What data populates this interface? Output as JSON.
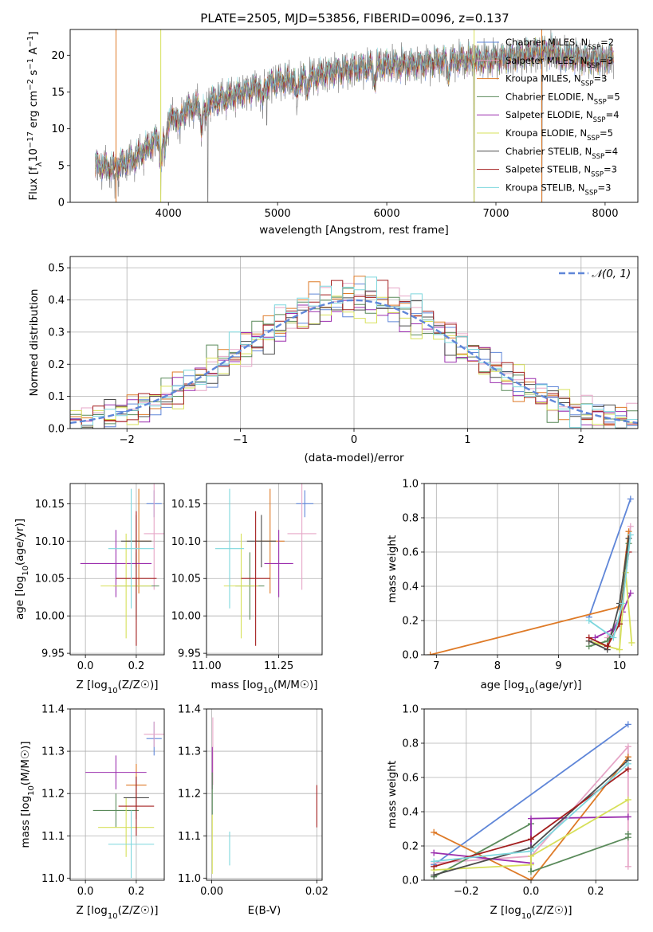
{
  "figure": {
    "title": "PLATE=2505, MJD=53856, FIBERID=0096, z=0.137"
  },
  "colors": {
    "chabrier_miles": "#5f86d8",
    "salpeter_miles": "#e6a6c7",
    "kroupa_miles": "#de7a27",
    "chabrier_elodie": "#5a8a5a",
    "salpeter_elodie": "#9b2fae",
    "kroupa_elodie": "#d7e05a",
    "chabrier_stelib": "#4c4c4c",
    "salpeter_stelib": "#a31e1e",
    "kroupa_stelib": "#7ed7dd",
    "spectrum_gray": "#808080",
    "normal_curve": "#5f86d8"
  },
  "legend": {
    "entries": [
      {
        "label": "Chabrier MILES, N",
        "sub": "SSP",
        "tail": "=2",
        "color_key": "chabrier_miles"
      },
      {
        "label": "Salpeter MILES, N",
        "sub": "SSP",
        "tail": "=3",
        "color_key": "salpeter_miles"
      },
      {
        "label": "Kroupa MILES, N",
        "sub": "SSP",
        "tail": "=3",
        "color_key": "kroupa_miles"
      },
      {
        "label": "Chabrier ELODIE, N",
        "sub": "SSP",
        "tail": "=5",
        "color_key": "chabrier_elodie"
      },
      {
        "label": "Salpeter ELODIE, N",
        "sub": "SSP",
        "tail": "=4",
        "color_key": "salpeter_elodie"
      },
      {
        "label": "Kroupa ELODIE, N",
        "sub": "SSP",
        "tail": "=5",
        "color_key": "kroupa_elodie"
      },
      {
        "label": "Chabrier STELIB, N",
        "sub": "SSP",
        "tail": "=4",
        "color_key": "chabrier_stelib"
      },
      {
        "label": "Salpeter STELIB, N",
        "sub": "SSP",
        "tail": "=3",
        "color_key": "salpeter_stelib"
      },
      {
        "label": "Kroupa STELIB, N",
        "sub": "SSP",
        "tail": "=3",
        "color_key": "kroupa_stelib"
      }
    ],
    "normal_label": "𝒩(0, 1)"
  },
  "chart_data": [
    {
      "id": "spectrum",
      "type": "line",
      "xlabel": "wavelength [Angstrom, rest frame]",
      "ylabel": "Flux [f_λ 10^-17 erg cm^-2 s^-1 A^-1]",
      "xlim": [
        3100,
        8300
      ],
      "ylim": [
        0,
        23.5
      ],
      "xticks": [
        4000,
        5000,
        6000,
        7000,
        8000
      ],
      "yticks": [
        0,
        5,
        10,
        15,
        20
      ],
      "grid": false,
      "legend_position": "top-right",
      "continuum_knots": [
        [
          3330,
          4.8
        ],
        [
          3500,
          4.3
        ],
        [
          3700,
          5.8
        ],
        [
          3900,
          8.5
        ],
        [
          4000,
          11.0
        ],
        [
          4200,
          12.6
        ],
        [
          4500,
          14.0
        ],
        [
          4800,
          15.5
        ],
        [
          5000,
          16.3
        ],
        [
          5200,
          16.5
        ],
        [
          5500,
          17.8
        ],
        [
          5800,
          18.2
        ],
        [
          6000,
          18.6
        ],
        [
          6300,
          18.8
        ],
        [
          6600,
          19.2
        ],
        [
          6900,
          19.4
        ],
        [
          7200,
          19.8
        ],
        [
          7500,
          20.5
        ],
        [
          7800,
          19.5
        ],
        [
          8000,
          19.3
        ],
        [
          8080,
          19.5
        ]
      ],
      "absorption_features": [
        [
          3934,
          4.5
        ],
        [
          3968,
          3.5
        ],
        [
          4102,
          2.0
        ],
        [
          4304,
          3.0
        ],
        [
          4340,
          2.0
        ],
        [
          4861,
          2.5
        ],
        [
          5175,
          2.5
        ],
        [
          5270,
          1.5
        ],
        [
          5890,
          2.0
        ],
        [
          6563,
          2.0
        ],
        [
          7600,
          1.5
        ]
      ],
      "deep_dips": [
        [
          3510,
          0.5
        ],
        [
          3540,
          0.8
        ],
        [
          3930,
          0.3
        ],
        [
          4360,
          0.0
        ],
        [
          4900,
          10.5
        ],
        [
          5180,
          13.0
        ],
        [
          5890,
          15.5
        ],
        [
          6800,
          0.0
        ],
        [
          7420,
          0.0
        ]
      ]
    },
    {
      "id": "residual_histogram",
      "type": "histogram",
      "xlabel": "(data-model)/error",
      "ylabel": "Normed distribution",
      "xlim": [
        -2.5,
        2.5
      ],
      "ylim": [
        0,
        0.535
      ],
      "xticks": [
        -2,
        -1,
        0,
        1,
        2
      ],
      "yticks": [
        0.0,
        0.1,
        0.2,
        0.3,
        0.4,
        0.5
      ],
      "grid": true,
      "bin_width": 0.1,
      "normal_curve": {
        "mean": 0,
        "sigma": 1
      }
    },
    {
      "id": "age_vs_Z",
      "type": "scatter",
      "xlabel": "Z [log10(Z/Z☉)]",
      "ylabel": "age [log10(age/yr)]",
      "xlim": [
        -0.06,
        0.31
      ],
      "ylim": [
        9.948,
        10.177
      ],
      "xticks": [
        0.0,
        0.2
      ],
      "yticks": [
        9.95,
        10.0,
        10.05,
        10.1,
        10.15
      ],
      "grid": true,
      "points": [
        {
          "model": "chabrier_miles",
          "x": 0.27,
          "y": 10.15,
          "dx": 0.03,
          "dy": 0.018
        },
        {
          "model": "salpeter_miles",
          "x": 0.27,
          "y": 10.11,
          "dx": 0.04,
          "dy": 0.075
        },
        {
          "model": "kroupa_miles",
          "x": 0.21,
          "y": 10.1,
          "dx": 0.05,
          "dy": 0.07
        },
        {
          "model": "chabrier_elodie",
          "x": 0.2,
          "y": 10.04,
          "dx": 0.09,
          "dy": 0.045
        },
        {
          "model": "salpeter_elodie",
          "x": 0.12,
          "y": 10.07,
          "dx": 0.14,
          "dy": 0.045
        },
        {
          "model": "kroupa_elodie",
          "x": 0.16,
          "y": 10.04,
          "dx": 0.1,
          "dy": 0.07
        },
        {
          "model": "chabrier_stelib",
          "x": 0.2,
          "y": 10.1,
          "dx": 0.06,
          "dy": 0.035
        },
        {
          "model": "salpeter_stelib",
          "x": 0.2,
          "y": 10.05,
          "dx": 0.08,
          "dy": 0.09
        },
        {
          "model": "kroupa_stelib",
          "x": 0.18,
          "y": 10.09,
          "dx": 0.09,
          "dy": 0.08
        }
      ]
    },
    {
      "id": "age_vs_mass",
      "type": "scatter",
      "xlabel": "mass [log10(M/M☉)]",
      "ylabel": "",
      "xlim": [
        11.0,
        11.4
      ],
      "ylim": [
        9.948,
        10.177
      ],
      "xticks": [
        11.0,
        11.25
      ],
      "yticks": [
        9.95,
        10.0,
        10.05,
        10.1,
        10.15
      ],
      "grid": true,
      "points": [
        {
          "model": "chabrier_miles",
          "x": 11.34,
          "y": 10.15,
          "dx": 0.03,
          "dy": 0.018
        },
        {
          "model": "salpeter_miles",
          "x": 11.33,
          "y": 10.11,
          "dx": 0.05,
          "dy": 0.075
        },
        {
          "model": "kroupa_miles",
          "x": 11.22,
          "y": 10.1,
          "dx": 0.05,
          "dy": 0.07
        },
        {
          "model": "chabrier_elodie",
          "x": 11.15,
          "y": 10.04,
          "dx": 0.05,
          "dy": 0.045
        },
        {
          "model": "salpeter_elodie",
          "x": 11.25,
          "y": 10.07,
          "dx": 0.05,
          "dy": 0.045
        },
        {
          "model": "kroupa_elodie",
          "x": 11.12,
          "y": 10.04,
          "dx": 0.06,
          "dy": 0.07
        },
        {
          "model": "chabrier_stelib",
          "x": 11.19,
          "y": 10.1,
          "dx": 0.05,
          "dy": 0.035
        },
        {
          "model": "salpeter_stelib",
          "x": 11.17,
          "y": 10.05,
          "dx": 0.05,
          "dy": 0.09
        },
        {
          "model": "kroupa_stelib",
          "x": 11.08,
          "y": 10.09,
          "dx": 0.05,
          "dy": 0.08
        }
      ]
    },
    {
      "id": "mass_weight_vs_age",
      "type": "line",
      "xlabel": "age [log10(age/yr)]",
      "ylabel": "mass weight",
      "xlim": [
        6.8,
        10.3
      ],
      "ylim": [
        0.0,
        1.0
      ],
      "xticks": [
        7,
        8,
        9,
        10
      ],
      "yticks": [
        0.0,
        0.2,
        0.4,
        0.6,
        0.8,
        1.0
      ],
      "grid": true,
      "series": [
        {
          "model": "chabrier_miles",
          "points": [
            [
              9.5,
              0.22
            ],
            [
              10.18,
              0.91
            ]
          ]
        },
        {
          "model": "salpeter_miles",
          "points": [
            [
              9.8,
              0.1
            ],
            [
              10.0,
              0.2
            ],
            [
              10.18,
              0.75
            ]
          ]
        },
        {
          "model": "kroupa_miles",
          "points": [
            [
              6.9,
              0.0
            ],
            [
              10.0,
              0.28
            ],
            [
              10.15,
              0.72
            ]
          ]
        },
        {
          "model": "chabrier_elodie",
          "points": [
            [
              9.5,
              0.05
            ],
            [
              9.8,
              0.08
            ],
            [
              10.0,
              0.2
            ],
            [
              10.15,
              0.65
            ]
          ]
        },
        {
          "model": "salpeter_elodie",
          "points": [
            [
              9.6,
              0.1
            ],
            [
              9.9,
              0.15
            ],
            [
              10.05,
              0.25
            ],
            [
              10.18,
              0.36
            ]
          ]
        },
        {
          "model": "kroupa_elodie",
          "points": [
            [
              9.5,
              0.08
            ],
            [
              9.8,
              0.05
            ],
            [
              10.0,
              0.03
            ],
            [
              10.1,
              0.48
            ],
            [
              10.2,
              0.07
            ]
          ]
        },
        {
          "model": "chabrier_stelib",
          "points": [
            [
              9.5,
              0.08
            ],
            [
              9.8,
              0.03
            ],
            [
              10.0,
              0.3
            ],
            [
              10.15,
              0.68
            ]
          ]
        },
        {
          "model": "salpeter_stelib",
          "points": [
            [
              9.5,
              0.1
            ],
            [
              9.8,
              0.05
            ],
            [
              10.0,
              0.18
            ],
            [
              10.15,
              0.6
            ]
          ]
        },
        {
          "model": "kroupa_stelib",
          "points": [
            [
              9.5,
              0.2
            ],
            [
              9.9,
              0.1
            ],
            [
              10.05,
              0.3
            ],
            [
              10.18,
              0.7
            ]
          ]
        }
      ]
    },
    {
      "id": "mass_vs_Z",
      "type": "scatter",
      "xlabel": "Z [log10(Z/Z☉)]",
      "ylabel": "mass [log10(M/M☉)]",
      "xlim": [
        -0.06,
        0.31
      ],
      "ylim": [
        10.995,
        11.4
      ],
      "xticks": [
        0.0,
        0.2
      ],
      "yticks": [
        11.0,
        11.1,
        11.2,
        11.3,
        11.4
      ],
      "grid": true,
      "points": [
        {
          "model": "chabrier_miles",
          "x": 0.27,
          "y": 11.33,
          "dx": 0.03,
          "dy": 0.04
        },
        {
          "model": "salpeter_miles",
          "x": 0.27,
          "y": 11.34,
          "dx": 0.04,
          "dy": 0.03
        },
        {
          "model": "kroupa_miles",
          "x": 0.2,
          "y": 11.22,
          "dx": 0.04,
          "dy": 0.05
        },
        {
          "model": "chabrier_elodie",
          "x": 0.12,
          "y": 11.16,
          "dx": 0.09,
          "dy": 0.04
        },
        {
          "model": "salpeter_elodie",
          "x": 0.12,
          "y": 11.25,
          "dx": 0.12,
          "dy": 0.04
        },
        {
          "model": "kroupa_elodie",
          "x": 0.16,
          "y": 11.12,
          "dx": 0.11,
          "dy": 0.07
        },
        {
          "model": "chabrier_stelib",
          "x": 0.2,
          "y": 11.19,
          "dx": 0.05,
          "dy": 0.05
        },
        {
          "model": "salpeter_stelib",
          "x": 0.2,
          "y": 11.17,
          "dx": 0.07,
          "dy": 0.07
        },
        {
          "model": "kroupa_stelib",
          "x": 0.18,
          "y": 11.08,
          "dx": 0.09,
          "dy": 0.08
        }
      ]
    },
    {
      "id": "mass_vs_ebv",
      "type": "scatter",
      "xlabel": "E(B-V)",
      "ylabel": "",
      "xlim": [
        -0.001,
        0.021
      ],
      "ylim": [
        10.995,
        11.4
      ],
      "xticks": [
        0.0,
        0.02
      ],
      "yticks": [
        11.0,
        11.1,
        11.2,
        11.3,
        11.4
      ],
      "grid": true,
      "points": [
        {
          "model": "salpeter_miles",
          "x": 0.0002,
          "y": 11.3,
          "dx": 0,
          "dy": 0.08
        },
        {
          "model": "salpeter_elodie",
          "x": 0.0001,
          "y": 11.26,
          "dx": 0,
          "dy": 0.05
        },
        {
          "model": "chabrier_elodie",
          "x": 0.0001,
          "y": 11.2,
          "dx": 0,
          "dy": 0.05
        },
        {
          "model": "kroupa_elodie",
          "x": 0.0001,
          "y": 11.08,
          "dx": 0,
          "dy": 0.07
        },
        {
          "model": "kroupa_stelib",
          "x": 0.0034,
          "y": 11.07,
          "dx": 0,
          "dy": 0.04
        },
        {
          "model": "salpeter_stelib",
          "x": 0.02,
          "y": 11.17,
          "dx": 0,
          "dy": 0.05
        }
      ]
    },
    {
      "id": "mass_weight_vs_Z",
      "type": "line",
      "xlabel": "Z [log10(Z/Z☉)]",
      "ylabel": "mass weight",
      "xlim": [
        -0.33,
        0.33
      ],
      "ylim": [
        0.0,
        1.0
      ],
      "xticks": [
        -0.2,
        0.0,
        0.2
      ],
      "yticks": [
        0.0,
        0.2,
        0.4,
        0.6,
        0.8,
        1.0
      ],
      "grid": true,
      "series": [
        {
          "model": "chabrier_miles",
          "points": [
            [
              -0.3,
              0.09
            ],
            [
              0.3,
              0.91
            ]
          ]
        },
        {
          "model": "salpeter_miles",
          "points": [
            [
              -0.3,
              0.1
            ],
            [
              0.0,
              0.14
            ],
            [
              0.3,
              0.78
            ],
            [
              0.3,
              0.08
            ]
          ]
        },
        {
          "model": "kroupa_miles",
          "points": [
            [
              -0.3,
              0.28
            ],
            [
              0.0,
              0.0
            ],
            [
              0.3,
              0.72
            ]
          ]
        },
        {
          "model": "chabrier_elodie",
          "points": [
            [
              -0.3,
              0.02
            ],
            [
              0.0,
              0.33
            ],
            [
              0.0,
              0.05
            ],
            [
              0.3,
              0.25
            ],
            [
              0.3,
              0.27
            ]
          ]
        },
        {
          "model": "salpeter_elodie",
          "points": [
            [
              -0.3,
              0.16
            ],
            [
              0.0,
              0.1
            ],
            [
              0.0,
              0.36
            ],
            [
              0.3,
              0.37
            ]
          ]
        },
        {
          "model": "kroupa_elodie",
          "points": [
            [
              -0.3,
              0.06
            ],
            [
              0.0,
              0.09
            ],
            [
              0.0,
              0.14
            ],
            [
              0.3,
              0.47
            ]
          ]
        },
        {
          "model": "chabrier_stelib",
          "points": [
            [
              -0.3,
              0.03
            ],
            [
              0.0,
              0.19
            ],
            [
              0.3,
              0.7
            ]
          ]
        },
        {
          "model": "salpeter_stelib",
          "points": [
            [
              -0.3,
              0.08
            ],
            [
              0.0,
              0.24
            ],
            [
              0.3,
              0.65
            ]
          ]
        },
        {
          "model": "kroupa_stelib",
          "points": [
            [
              -0.3,
              0.11
            ],
            [
              0.0,
              0.17
            ],
            [
              0.3,
              0.68
            ]
          ]
        }
      ]
    }
  ]
}
